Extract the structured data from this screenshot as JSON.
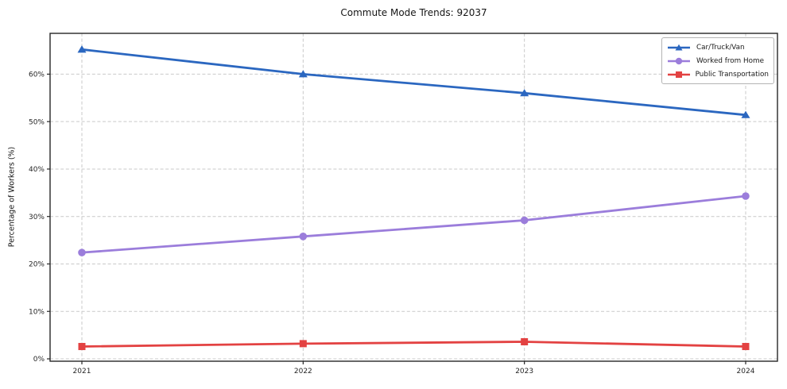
{
  "chart_data": {
    "type": "line",
    "title": "Commute Mode Trends: 92037",
    "xlabel": "",
    "ylabel": "Percentage of Workers (%)",
    "categories": [
      "2021",
      "2022",
      "2023",
      "2024"
    ],
    "series": [
      {
        "name": "Car/Truck/Van",
        "color": "#2b67c0",
        "marker": "triangle",
        "values": [
          65.2,
          60.0,
          56.0,
          51.4
        ]
      },
      {
        "name": "Worked from Home",
        "color": "#9b7ddb",
        "marker": "circle",
        "values": [
          22.4,
          25.8,
          29.2,
          34.3
        ]
      },
      {
        "name": "Public Transportation",
        "color": "#e34242",
        "marker": "square",
        "values": [
          2.6,
          3.2,
          3.6,
          2.6
        ]
      }
    ],
    "yticks": [
      0,
      10,
      20,
      30,
      40,
      50,
      60
    ],
    "ytick_labels": [
      "0%",
      "10%",
      "20%",
      "30%",
      "40%",
      "50%",
      "60%"
    ],
    "ylim": [
      -0.5,
      68.6
    ],
    "grid": true,
    "grid_style": "dashed",
    "legend_position": "upper right",
    "axis_color": "#262626",
    "grid_color": "#c9c9c9"
  }
}
